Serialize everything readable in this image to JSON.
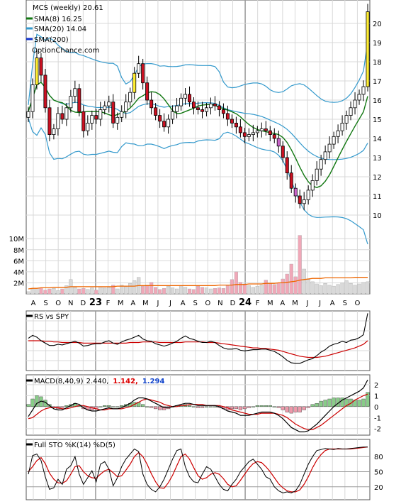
{
  "header": {
    "title": "MCS (weekly) 20.61",
    "watermark": "OptionChance.com"
  },
  "colors": {
    "background": "#ffffff",
    "grid": "#d8d8d8",
    "divider": "#888888",
    "up_candle": "#ffffff",
    "down_candle": "#cc1122",
    "yellow_candle": "#ffee33",
    "purple_candle": "#cc66cc",
    "sma8": "#117711",
    "sma20": "#3399cc",
    "sma200": "#1133cc",
    "bollinger_upper_hi": "#ddcc00",
    "volume_up": "#d9d9d9",
    "volume_down": "#f0a8b8",
    "volume_avg": "#ee6600",
    "rs_line": "#000000",
    "rs_ma": "#cc0000",
    "macd_line": "#000000",
    "signal_line": "#cc0000",
    "hist_pos": "#88cc88",
    "hist_neg": "#ee99aa",
    "macd_value_red": "#dd0000",
    "macd_value_blue": "#1144cc"
  },
  "legend": [
    {
      "label": "SMA(8) 16.25",
      "color": "#117711"
    },
    {
      "label": "SMA(20) 14.04",
      "color": "#3399cc"
    },
    {
      "label": "SMA(200)",
      "color": "#1133cc"
    }
  ],
  "time_axis": {
    "labels": [
      "A",
      "S",
      "O",
      "N",
      "D",
      "23",
      "F",
      "M",
      "A",
      "M",
      "J",
      "J",
      "A",
      "S",
      "O",
      "N",
      "D",
      "24",
      "F",
      "M",
      "A",
      "M",
      "J",
      "J",
      "A",
      "S",
      "O"
    ],
    "bold": [
      "23",
      "24"
    ],
    "year_week_index": [
      21,
      73
    ]
  },
  "panels": {
    "rs": {
      "label": "RS vs SPY"
    },
    "macd": {
      "label": "MACD(8,40,9)",
      "value": "2.440,",
      "signal_value": "1.142,",
      "hist_value": "1.294"
    },
    "sto": {
      "label": "Full STO %K(14) %D(5)"
    }
  },
  "chart_data": [
    {
      "type": "candlestick",
      "title": "MCS (weekly) 20.61",
      "ylim": [
        9,
        21
      ],
      "y_ticks": [
        10,
        11,
        12,
        13,
        14,
        15,
        16,
        17,
        18,
        19,
        20
      ],
      "last_close": 20.61,
      "close": [
        15.4,
        16.8,
        18.2,
        17.3,
        15.6,
        14.2,
        14.5,
        15.3,
        15.0,
        15.6,
        16.2,
        16.6,
        15.4,
        14.4,
        14.8,
        15.2,
        15.0,
        15.5,
        15.7,
        15.9,
        14.8,
        15.1,
        15.4,
        15.9,
        16.4,
        17.4,
        17.9,
        16.9,
        16.0,
        15.6,
        15.2,
        14.9,
        14.6,
        15.0,
        15.4,
        15.7,
        16.1,
        16.3,
        15.9,
        15.6,
        15.5,
        15.4,
        15.6,
        15.8,
        15.7,
        15.5,
        15.3,
        15.0,
        14.8,
        14.6,
        14.3,
        14.1,
        14.2,
        14.3,
        14.4,
        14.5,
        14.4,
        14.2,
        14.0,
        13.6,
        13.0,
        12.2,
        11.4,
        11.0,
        10.6,
        10.8,
        11.3,
        11.8,
        12.4,
        12.9,
        13.3,
        13.7,
        14.1,
        14.4,
        14.8,
        15.2,
        15.6,
        16.0,
        16.3,
        16.7,
        20.61
      ],
      "series": [
        {
          "name": "SMA(8)",
          "color": "#117711",
          "value": 16.25
        },
        {
          "name": "SMA(20)",
          "color": "#3399cc",
          "value": 14.04
        },
        {
          "name": "SMA(200)",
          "color": "#1133cc"
        }
      ]
    },
    {
      "type": "bar",
      "name": "Volume",
      "y_ticks": [
        "10M",
        "8M",
        "6M",
        "4M",
        "2M"
      ],
      "y_tick_values": [
        10,
        8,
        6,
        4,
        2
      ],
      "unit": "M",
      "ylim": [
        0,
        10.8
      ],
      "values": [
        0.4,
        0.9,
        1.0,
        1.1,
        0.7,
        0.9,
        1.0,
        0.6,
        0.9,
        1.5,
        2.6,
        1.2,
        0.9,
        1.0,
        0.8,
        1.1,
        0.7,
        1.3,
        1.1,
        1.2,
        1.6,
        0.9,
        1.6,
        1.3,
        1.9,
        2.4,
        3.0,
        1.4,
        1.6,
        2.1,
        1.2,
        0.8,
        1.0,
        1.4,
        1.1,
        0.9,
        1.5,
        1.2,
        0.9,
        0.8,
        1.4,
        1.2,
        1.1,
        0.9,
        1.0,
        1.1,
        1.0,
        1.5,
        2.6,
        4.0,
        2.1,
        1.8,
        1.5,
        1.2,
        1.4,
        1.6,
        2.5,
        1.9,
        1.7,
        2.0,
        2.7,
        3.6,
        5.4,
        3.1,
        10.6,
        4.5,
        2.6,
        2.2,
        1.8,
        1.5,
        1.9,
        1.6,
        1.4,
        1.7,
        2.0,
        2.4,
        1.9,
        1.6,
        1.8,
        2.1,
        2.2
      ],
      "avg_values": [
        0.9,
        1.0,
        1.0,
        1.1,
        1.1,
        1.1,
        1.2,
        1.2,
        1.2,
        1.2,
        1.3,
        1.3,
        1.3,
        1.3,
        1.3,
        1.3,
        1.3,
        1.3,
        1.3,
        1.3,
        1.3,
        1.4,
        1.4,
        1.4,
        1.4,
        1.4,
        1.5,
        1.5,
        1.5,
        1.5,
        1.5,
        1.5,
        1.5,
        1.5,
        1.5,
        1.5,
        1.5,
        1.5,
        1.5,
        1.5,
        1.5,
        1.5,
        1.5,
        1.5,
        1.5,
        1.6,
        1.6,
        1.6,
        1.6,
        1.7,
        1.7,
        1.7,
        1.8,
        1.8,
        1.8,
        1.8,
        1.9,
        1.9,
        1.9,
        2.0,
        2.0,
        2.1,
        2.2,
        2.3,
        2.5,
        2.6,
        2.7,
        2.8,
        2.8,
        2.8,
        2.9,
        2.9,
        2.9,
        2.9,
        2.9,
        2.9,
        2.9,
        3.0,
        3.0,
        3.0,
        3.0
      ]
    },
    {
      "type": "line",
      "name": "RS vs SPY",
      "ylim": [
        0,
        10
      ],
      "series": [
        {
          "name": "RS vs SPY",
          "values": [
            5.4,
            5.9,
            5.6,
            5.0,
            4.6,
            4.2,
            4.2,
            4.4,
            4.3,
            4.5,
            4.7,
            4.9,
            4.6,
            4.1,
            4.2,
            4.4,
            4.5,
            4.5,
            4.8,
            5.0,
            4.6,
            4.4,
            4.8,
            5.1,
            5.3,
            5.6,
            5.9,
            5.3,
            5.0,
            4.9,
            4.5,
            4.3,
            4.1,
            4.3,
            4.6,
            4.9,
            5.4,
            5.8,
            5.4,
            5.2,
            4.9,
            4.7,
            4.7,
            4.9,
            4.7,
            4.2,
            3.8,
            3.6,
            3.6,
            3.7,
            3.4,
            3.3,
            3.4,
            3.5,
            3.5,
            3.6,
            3.6,
            3.4,
            3.2,
            2.8,
            2.3,
            1.7,
            1.3,
            1.2,
            1.2,
            1.5,
            1.8,
            2.0,
            2.5,
            3.1,
            3.5,
            4.1,
            4.4,
            4.6,
            4.9,
            4.7,
            5.1,
            5.2,
            5.5,
            6.0,
            9.6
          ]
        },
        {
          "name": "MA",
          "values": [
            5.0,
            5.0,
            5.0,
            5.0,
            4.9,
            4.9,
            4.8,
            4.8,
            4.7,
            4.7,
            4.7,
            4.7,
            4.7,
            4.6,
            4.6,
            4.6,
            4.6,
            4.6,
            4.6,
            4.6,
            4.6,
            4.6,
            4.6,
            4.6,
            4.7,
            4.7,
            4.7,
            4.8,
            4.8,
            4.8,
            4.8,
            4.7,
            4.7,
            4.7,
            4.7,
            4.7,
            4.7,
            4.8,
            4.8,
            4.8,
            4.8,
            4.8,
            4.7,
            4.7,
            4.7,
            4.6,
            4.5,
            4.4,
            4.3,
            4.2,
            4.1,
            4.0,
            3.9,
            3.8,
            3.8,
            3.7,
            3.7,
            3.6,
            3.5,
            3.4,
            3.2,
            3.0,
            2.8,
            2.6,
            2.4,
            2.3,
            2.2,
            2.2,
            2.2,
            2.3,
            2.4,
            2.6,
            2.8,
            3.0,
            3.2,
            3.4,
            3.6,
            3.8,
            4.1,
            4.4,
            5.0
          ]
        }
      ]
    },
    {
      "type": "line",
      "name": "MACD(8,40,9)",
      "ylim": [
        -2.6,
        2.9
      ],
      "y_ticks": [
        2,
        1,
        0,
        -1,
        -2
      ],
      "series": [
        {
          "name": "MACD",
          "values": [
            -0.9,
            -0.3,
            0.3,
            0.5,
            0.4,
            0.1,
            -0.2,
            -0.3,
            -0.3,
            -0.1,
            0.1,
            0.3,
            0.2,
            -0.1,
            -0.3,
            -0.4,
            -0.4,
            -0.3,
            -0.2,
            -0.1,
            -0.2,
            -0.2,
            -0.1,
            0.1,
            0.3,
            0.6,
            0.8,
            0.8,
            0.7,
            0.5,
            0.3,
            0.1,
            -0.1,
            -0.1,
            0.0,
            0.1,
            0.2,
            0.3,
            0.3,
            0.2,
            0.1,
            0.1,
            0.1,
            0.1,
            0.1,
            0.0,
            -0.2,
            -0.4,
            -0.5,
            -0.6,
            -0.8,
            -0.8,
            -0.8,
            -0.7,
            -0.6,
            -0.5,
            -0.5,
            -0.5,
            -0.6,
            -0.8,
            -1.1,
            -1.5,
            -1.9,
            -2.1,
            -2.3,
            -2.3,
            -2.2,
            -1.9,
            -1.6,
            -1.2,
            -0.8,
            -0.4,
            0.0,
            0.3,
            0.6,
            0.8,
            1.0,
            1.2,
            1.4,
            1.7,
            2.44
          ]
        },
        {
          "name": "Signal",
          "values": [
            -1.1,
            -1.0,
            -0.7,
            -0.4,
            -0.2,
            -0.1,
            -0.1,
            -0.1,
            -0.2,
            -0.2,
            -0.1,
            0.0,
            0.1,
            0.1,
            0.0,
            -0.1,
            -0.2,
            -0.3,
            -0.3,
            -0.2,
            -0.2,
            -0.2,
            -0.2,
            -0.1,
            0.0,
            0.2,
            0.4,
            0.6,
            0.7,
            0.6,
            0.5,
            0.4,
            0.2,
            0.1,
            0.0,
            0.0,
            0.1,
            0.1,
            0.2,
            0.2,
            0.2,
            0.2,
            0.1,
            0.1,
            0.1,
            0.1,
            0.0,
            -0.1,
            -0.3,
            -0.4,
            -0.5,
            -0.6,
            -0.7,
            -0.7,
            -0.7,
            -0.6,
            -0.6,
            -0.6,
            -0.6,
            -0.7,
            -0.8,
            -1.0,
            -1.3,
            -1.6,
            -1.8,
            -2.0,
            -2.1,
            -2.1,
            -1.9,
            -1.7,
            -1.4,
            -1.1,
            -0.8,
            -0.5,
            -0.2,
            0.1,
            0.3,
            0.6,
            0.8,
            1.0,
            1.142
          ]
        },
        {
          "name": "Histogram",
          "values": [
            0.2,
            0.7,
            1.0,
            0.9,
            0.6,
            0.2,
            -0.1,
            -0.2,
            -0.1,
            0.1,
            0.2,
            0.3,
            0.1,
            -0.2,
            -0.3,
            -0.3,
            -0.2,
            0.0,
            0.1,
            0.1,
            0.0,
            0.0,
            0.1,
            0.2,
            0.3,
            0.4,
            0.4,
            0.2,
            0.0,
            -0.1,
            -0.2,
            -0.3,
            -0.3,
            -0.2,
            0.0,
            0.1,
            0.1,
            0.2,
            0.1,
            0.0,
            -0.1,
            -0.1,
            0.0,
            0.0,
            0.0,
            -0.1,
            -0.2,
            -0.3,
            -0.2,
            -0.2,
            -0.3,
            -0.2,
            -0.1,
            0.0,
            0.1,
            0.1,
            0.1,
            0.1,
            0.0,
            -0.1,
            -0.3,
            -0.5,
            -0.6,
            -0.5,
            -0.5,
            -0.3,
            -0.1,
            0.2,
            0.3,
            0.5,
            0.6,
            0.7,
            0.8,
            0.8,
            0.8,
            0.7,
            0.7,
            0.6,
            0.6,
            0.7,
            1.294
          ]
        }
      ]
    },
    {
      "type": "line",
      "name": "Full STO %K(14) %D(5)",
      "ylim": [
        0,
        100
      ],
      "y_ticks": [
        80,
        50,
        20
      ],
      "series": [
        {
          "name": "%K",
          "values": [
            45,
            82,
            85,
            72,
            40,
            15,
            18,
            35,
            25,
            55,
            62,
            80,
            45,
            25,
            38,
            52,
            30,
            65,
            70,
            55,
            22,
            38,
            60,
            75,
            85,
            95,
            90,
            45,
            25,
            15,
            10,
            20,
            35,
            55,
            75,
            92,
            95,
            60,
            40,
            30,
            28,
            45,
            60,
            55,
            40,
            25,
            15,
            12,
            25,
            35,
            50,
            60,
            70,
            75,
            65,
            55,
            40,
            35,
            20,
            12,
            8,
            10,
            8,
            12,
            25,
            45,
            65,
            80,
            92,
            94,
            96,
            95,
            94,
            96,
            95,
            95,
            96,
            97,
            98,
            99,
            99
          ]
        },
        {
          "name": "%D",
          "values": [
            50,
            60,
            72,
            78,
            66,
            47,
            35,
            28,
            27,
            32,
            45,
            60,
            62,
            50,
            42,
            38,
            37,
            45,
            52,
            55,
            48,
            40,
            42,
            53,
            65,
            80,
            88,
            80,
            65,
            46,
            30,
            18,
            17,
            28,
            43,
            62,
            80,
            85,
            75,
            58,
            42,
            35,
            38,
            45,
            48,
            45,
            36,
            25,
            20,
            22,
            33,
            45,
            57,
            66,
            70,
            68,
            60,
            50,
            38,
            26,
            18,
            12,
            10,
            10,
            14,
            25,
            40,
            58,
            73,
            84,
            92,
            95,
            95,
            95,
            95,
            95,
            95,
            96,
            97,
            98,
            99
          ]
        }
      ]
    }
  ]
}
